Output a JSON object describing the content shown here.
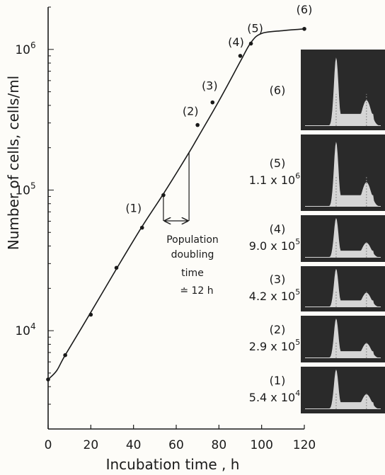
{
  "chart_data": {
    "type": "line",
    "xlabel": "Incubation time , h",
    "ylabel": "Number of cells,  cells/ml",
    "x_ticks": [
      "0",
      "20",
      "40",
      "60",
      "80",
      "100",
      "120"
    ],
    "y_ticks": [
      {
        "value": 10000,
        "base": "10",
        "exp": "4"
      },
      {
        "value": 100000,
        "base": "10",
        "exp": "5"
      },
      {
        "value": 1000000,
        "base": "10",
        "exp": "6"
      }
    ],
    "xlim": [
      0,
      120
    ],
    "ylim": [
      2000,
      2000000
    ],
    "yscale": "log",
    "grid": false,
    "points": [
      {
        "x": 0,
        "y": 4500
      },
      {
        "x": 8,
        "y": 6700
      },
      {
        "x": 20,
        "y": 13000
      },
      {
        "x": 32,
        "y": 28000
      },
      {
        "x": 44,
        "y": 54000
      },
      {
        "x": 54,
        "y": 92000
      },
      {
        "x": 70,
        "y": 290000
      },
      {
        "x": 77,
        "y": 420000
      },
      {
        "x": 90,
        "y": 900000
      },
      {
        "x": 95,
        "y": 1100000
      },
      {
        "x": 120,
        "y": 1400000
      }
    ],
    "curve": [
      {
        "x": 0,
        "y": 4500
      },
      {
        "x": 4,
        "y": 5200
      },
      {
        "x": 8,
        "y": 6700
      },
      {
        "x": 20,
        "y": 13500
      },
      {
        "x": 32,
        "y": 27500
      },
      {
        "x": 44,
        "y": 55000
      },
      {
        "x": 54,
        "y": 94000
      },
      {
        "x": 66,
        "y": 185000
      },
      {
        "x": 70,
        "y": 235000
      },
      {
        "x": 80,
        "y": 430000
      },
      {
        "x": 90,
        "y": 820000
      },
      {
        "x": 95,
        "y": 1120000
      },
      {
        "x": 100,
        "y": 1300000
      },
      {
        "x": 110,
        "y": 1360000
      },
      {
        "x": 120,
        "y": 1400000
      }
    ],
    "labeled_points": [
      {
        "label": "(1)",
        "x": 44,
        "y": 54000
      },
      {
        "label": "(2)",
        "x": 70,
        "y": 290000
      },
      {
        "label": "(3)",
        "x": 77,
        "y": 420000
      },
      {
        "label": "(4)",
        "x": 90,
        "y": 900000
      },
      {
        "label": "(5)",
        "x": 95,
        "y": 1100000
      },
      {
        "label": "(6)",
        "x": 120,
        "y": 1400000
      }
    ],
    "doubling_annotation": {
      "lines": [
        "Population",
        "doubling",
        "time",
        "≐ 12 h"
      ],
      "x_start": 54,
      "x_end": 66
    },
    "histogram_panels": [
      {
        "label": "(6)",
        "base": "",
        "exp": ""
      },
      {
        "label": "(5)",
        "base": "1.1 x 10",
        "exp": "6"
      },
      {
        "label": "(4)",
        "base": "9.0 x 10",
        "exp": "5"
      },
      {
        "label": "(3)",
        "base": "4.2 x 10",
        "exp": "5"
      },
      {
        "label": "(2)",
        "base": "2.9 x 10",
        "exp": "5"
      },
      {
        "label": "(1)",
        "base": "5.4 x 10",
        "exp": "4"
      }
    ]
  },
  "colors": {
    "ink": "#1a1a1a",
    "panel_bg": "#2a2a2a",
    "panel_peak": "#e8e8e8"
  }
}
